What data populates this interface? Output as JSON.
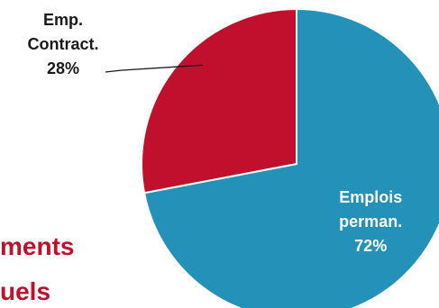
{
  "background_text": {
    "line1": "ments",
    "line2": "uels",
    "color": "#c0102e"
  },
  "chart_data": {
    "type": "pie",
    "title": "",
    "start_angle_deg": 0,
    "direction": "clockwise",
    "slices": [
      {
        "label": "Emplois perman.",
        "label_lines": [
          "Emplois",
          "perman."
        ],
        "value": 72,
        "value_label": "72%",
        "color": "#2492b8",
        "label_color": "#ffffff",
        "label_position": "inside"
      },
      {
        "label": "Emp. Contract.",
        "label_lines": [
          "Emp.",
          "Contract."
        ],
        "value": 28,
        "value_label": "28%",
        "color": "#c0102e",
        "label_color": "#1a1a1a",
        "label_position": "outside-leader"
      }
    ]
  }
}
